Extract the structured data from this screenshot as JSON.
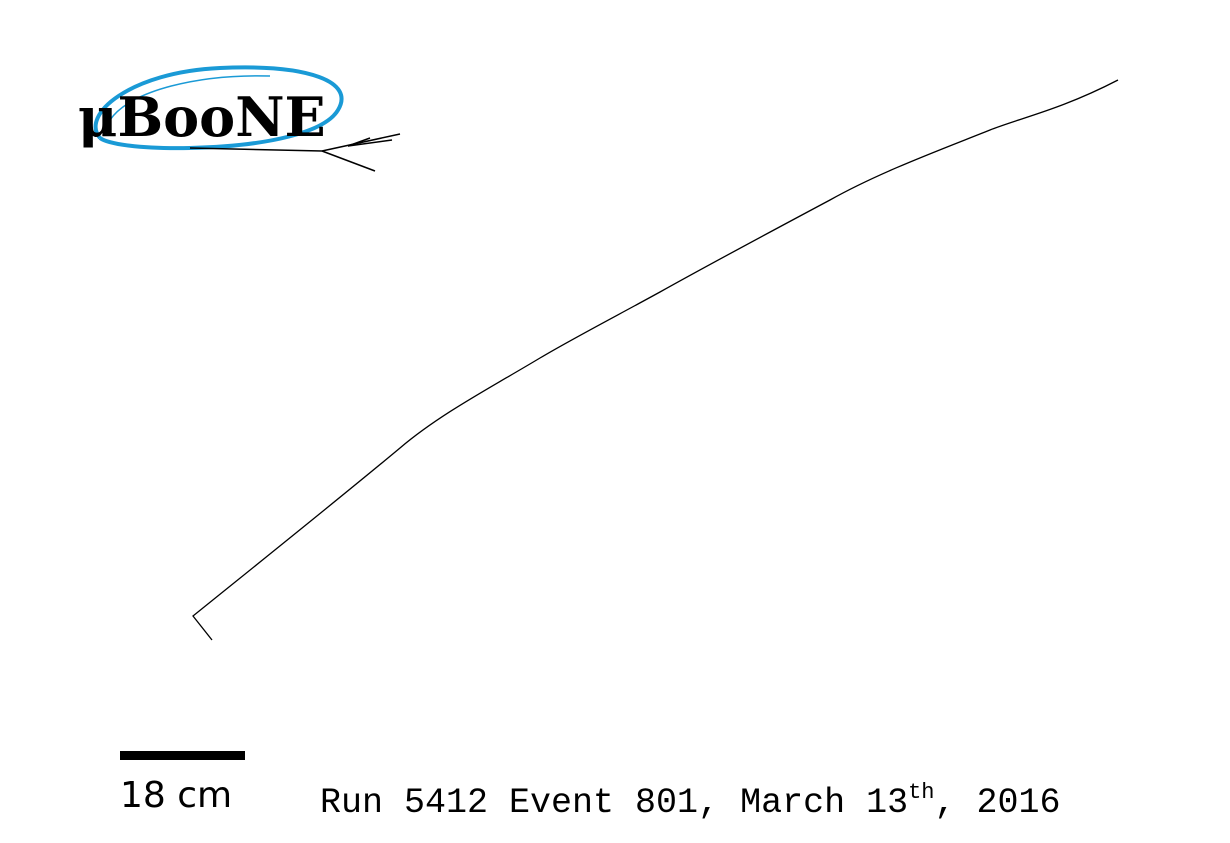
{
  "logo": {
    "text": "μBooNE",
    "accent_color": "#1a9ad6"
  },
  "track": {
    "color": "#000000"
  },
  "scale": {
    "label": "18 cm"
  },
  "caption": {
    "prefix": "Run 5412 Event 801, March 13",
    "superscript": "th",
    "suffix": ", 2016"
  }
}
